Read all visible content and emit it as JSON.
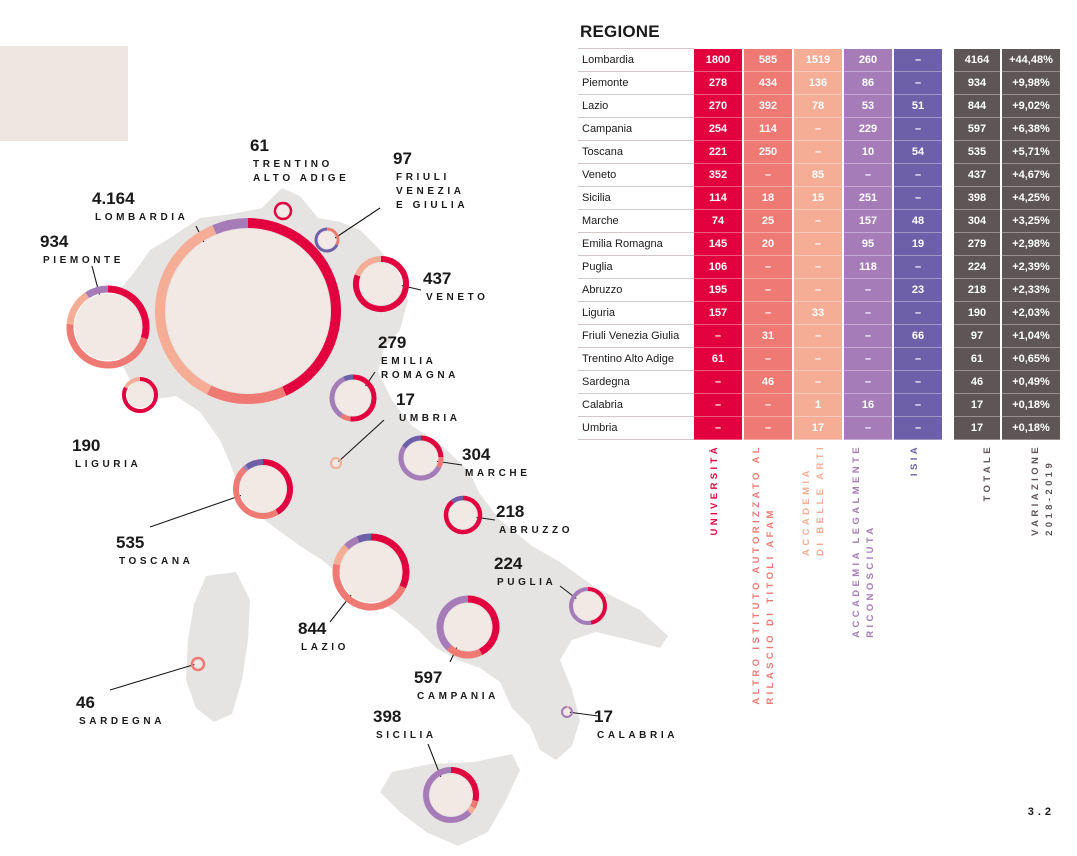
{
  "page_number": "3.2",
  "table": {
    "title": "REGIONE",
    "columns": [
      {
        "label": "UNIVERSITÀ",
        "color": "#e3003e"
      },
      {
        "label": "ALTRO ISTITUTO AUTORIZZATO AL RILASCIO DI TITOLI AFAM",
        "color": "#ef7a74"
      },
      {
        "label": "ACCADEMIA DI BELLE ARTI",
        "color": "#f5ad96"
      },
      {
        "label": "ACCADEMIA LEGALMENTE RICONOSCIUTA",
        "color": "#a67cb8"
      },
      {
        "label": "ISIA",
        "color": "#6d5fa8"
      },
      {
        "label": "TOTALE",
        "color": "#5e5656"
      },
      {
        "label": "VARIAZIONE 2018-2019",
        "color": "#5e5656"
      }
    ],
    "column_label_lines": {
      "col0": [
        "UNIVERSITÀ"
      ],
      "col1": [
        "ALTRO ISTITUTO AUTORIZZATO AL",
        "RILASCIO DI TITOLI AFAM"
      ],
      "col2": [
        "ACCADEMIA",
        "DI BELLE ARTI"
      ],
      "col3": [
        "ACCADEMIA LEGALMENTE",
        "RICONOSCIUTA"
      ],
      "col4": [
        "ISIA"
      ],
      "col5": [
        "TOTALE"
      ],
      "col6": [
        "VARIAZIONE",
        "2018-2019"
      ]
    },
    "rows": [
      {
        "region": "Lombardia",
        "values": [
          "1800",
          "585",
          "1519",
          "260",
          "–"
        ],
        "total": "4164",
        "variation": "+44,48%"
      },
      {
        "region": "Piemonte",
        "values": [
          "278",
          "434",
          "136",
          "86",
          "–"
        ],
        "total": "934",
        "variation": "+9,98%"
      },
      {
        "region": "Lazio",
        "values": [
          "270",
          "392",
          "78",
          "53",
          "51"
        ],
        "total": "844",
        "variation": "+9,02%"
      },
      {
        "region": "Campania",
        "values": [
          "254",
          "114",
          "–",
          "229",
          "–"
        ],
        "total": "597",
        "variation": "+6,38%"
      },
      {
        "region": "Toscana",
        "values": [
          "221",
          "250",
          "–",
          "10",
          "54"
        ],
        "total": "535",
        "variation": "+5,71%"
      },
      {
        "region": "Veneto",
        "values": [
          "352",
          "–",
          "85",
          "–",
          "–"
        ],
        "total": "437",
        "variation": "+4,67%"
      },
      {
        "region": "Sicilia",
        "values": [
          "114",
          "18",
          "15",
          "251",
          "–"
        ],
        "total": "398",
        "variation": "+4,25%"
      },
      {
        "region": "Marche",
        "values": [
          "74",
          "25",
          "–",
          "157",
          "48"
        ],
        "total": "304",
        "variation": "+3,25%"
      },
      {
        "region": "Emilia Romagna",
        "values": [
          "145",
          "20",
          "–",
          "95",
          "19"
        ],
        "total": "279",
        "variation": "+2,98%"
      },
      {
        "region": "Puglia",
        "values": [
          "106",
          "–",
          "–",
          "118",
          "–"
        ],
        "total": "224",
        "variation": "+2,39%"
      },
      {
        "region": "Abruzzo",
        "values": [
          "195",
          "–",
          "–",
          "–",
          "23"
        ],
        "total": "218",
        "variation": "+2,33%"
      },
      {
        "region": "Liguria",
        "values": [
          "157",
          "–",
          "33",
          "–",
          "–"
        ],
        "total": "190",
        "variation": "+2,03%"
      },
      {
        "region": "Friuli Venezia Giulia",
        "values": [
          "–",
          "31",
          "–",
          "–",
          "66"
        ],
        "total": "97",
        "variation": "+1,04%"
      },
      {
        "region": "Trentino Alto Adige",
        "values": [
          "61",
          "–",
          "–",
          "–",
          "–"
        ],
        "total": "61",
        "variation": "+0,65%"
      },
      {
        "region": "Sardegna",
        "values": [
          "–",
          "46",
          "–",
          "–",
          "–"
        ],
        "total": "46",
        "variation": "+0,49%"
      },
      {
        "region": "Calabria",
        "values": [
          "–",
          "–",
          "1",
          "16",
          "–"
        ],
        "total": "17",
        "variation": "+0,18%"
      },
      {
        "region": "Umbria",
        "values": [
          "–",
          "–",
          "17",
          "–",
          "–"
        ],
        "total": "17",
        "variation": "+0,18%"
      }
    ]
  },
  "map_labels": [
    {
      "id": "lombardia",
      "number": "4.164",
      "name_lines": [
        "LOMBARDIA"
      ]
    },
    {
      "id": "piemonte",
      "number": "934",
      "name_lines": [
        "PIEMONTE"
      ]
    },
    {
      "id": "trentino",
      "number": "61",
      "name_lines": [
        "TRENTINO",
        "ALTO ADIGE"
      ]
    },
    {
      "id": "friuli",
      "number": "97",
      "name_lines": [
        "FRIULI",
        "VENEZIA",
        "E GIULIA"
      ]
    },
    {
      "id": "veneto",
      "number": "437",
      "name_lines": [
        "VENETO"
      ]
    },
    {
      "id": "emilia",
      "number": "279",
      "name_lines": [
        "EMILIA",
        "ROMAGNA"
      ]
    },
    {
      "id": "umbria",
      "number": "17",
      "name_lines": [
        "UMBRIA"
      ]
    },
    {
      "id": "liguria",
      "number": "190",
      "name_lines": [
        "LIGURIA"
      ]
    },
    {
      "id": "marche",
      "number": "304",
      "name_lines": [
        "MARCHE"
      ]
    },
    {
      "id": "abruzzo",
      "number": "218",
      "name_lines": [
        "ABRUZZO"
      ]
    },
    {
      "id": "toscana",
      "number": "535",
      "name_lines": [
        "TOSCANA"
      ]
    },
    {
      "id": "puglia",
      "number": "224",
      "name_lines": [
        "PUGLIA"
      ]
    },
    {
      "id": "lazio",
      "number": "844",
      "name_lines": [
        "LAZIO"
      ]
    },
    {
      "id": "campania",
      "number": "597",
      "name_lines": [
        "CAMPANIA"
      ]
    },
    {
      "id": "sardegna",
      "number": "46",
      "name_lines": [
        "SARDEGNA"
      ]
    },
    {
      "id": "sicilia",
      "number": "398",
      "name_lines": [
        "SICILIA"
      ]
    },
    {
      "id": "calabria",
      "number": "17",
      "name_lines": [
        "CALABRIA"
      ]
    }
  ],
  "colors": {
    "universita": "#e3003e",
    "altro_istituto": "#ef7a74",
    "accademia_belle_arti": "#f5ad96",
    "accademia_legalmente": "#a67cb8",
    "isia": "#6d5fa8",
    "total_column": "#5e5656",
    "map_land": "#e6e4e3",
    "bubble_fill": "#f2e8e4"
  },
  "chart_data": {
    "type": "table",
    "title": "REGIONE",
    "categories": [
      "Lombardia",
      "Piemonte",
      "Lazio",
      "Campania",
      "Toscana",
      "Veneto",
      "Sicilia",
      "Marche",
      "Emilia Romagna",
      "Puglia",
      "Abruzzo",
      "Liguria",
      "Friuli Venezia Giulia",
      "Trentino Alto Adige",
      "Sardegna",
      "Calabria",
      "Umbria"
    ],
    "series": [
      {
        "name": "UNIVERSITÀ",
        "values": [
          1800,
          278,
          270,
          254,
          221,
          352,
          114,
          74,
          145,
          106,
          195,
          157,
          0,
          61,
          0,
          0,
          0
        ]
      },
      {
        "name": "ALTRO ISTITUTO AUTORIZZATO AL RILASCIO DI TITOLI AFAM",
        "values": [
          585,
          434,
          392,
          114,
          250,
          0,
          18,
          25,
          20,
          0,
          0,
          0,
          31,
          0,
          46,
          0,
          0
        ]
      },
      {
        "name": "ACCADEMIA DI BELLE ARTI",
        "values": [
          1519,
          136,
          78,
          0,
          0,
          85,
          15,
          0,
          0,
          0,
          0,
          33,
          0,
          0,
          0,
          1,
          17
        ]
      },
      {
        "name": "ACCADEMIA LEGALMENTE RICONOSCIUTA",
        "values": [
          260,
          86,
          53,
          229,
          10,
          0,
          251,
          157,
          95,
          118,
          0,
          0,
          0,
          0,
          0,
          16,
          0
        ]
      },
      {
        "name": "ISIA",
        "values": [
          0,
          0,
          51,
          0,
          54,
          0,
          0,
          48,
          19,
          0,
          23,
          0,
          66,
          0,
          0,
          0,
          0
        ]
      },
      {
        "name": "TOTALE",
        "values": [
          4164,
          934,
          844,
          597,
          535,
          437,
          398,
          304,
          279,
          224,
          218,
          190,
          97,
          61,
          46,
          17,
          17
        ]
      },
      {
        "name": "VARIAZIONE 2018-2019",
        "values": [
          44.48,
          9.98,
          9.02,
          6.38,
          5.71,
          4.67,
          4.25,
          3.25,
          2.98,
          2.39,
          2.33,
          2.03,
          1.04,
          0.65,
          0.49,
          0.18,
          0.18
        ]
      }
    ]
  }
}
